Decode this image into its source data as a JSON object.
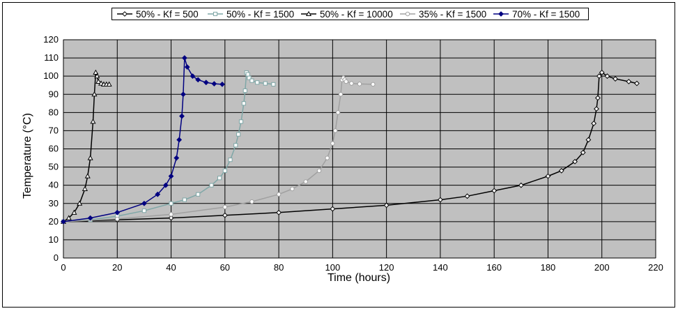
{
  "chart_data": {
    "type": "line",
    "title": "",
    "xlabel": "Time (hours)",
    "ylabel": "Temperature (°C)",
    "xlim": [
      0,
      220
    ],
    "ylim": [
      0,
      120
    ],
    "x_ticks": [
      0,
      20,
      40,
      60,
      80,
      100,
      120,
      140,
      160,
      180,
      200,
      220
    ],
    "y_ticks": [
      0,
      10,
      20,
      30,
      40,
      50,
      60,
      70,
      80,
      90,
      100,
      110,
      120
    ],
    "grid": true,
    "plot_background": "#c0c0c0",
    "legend_position": "top",
    "series": [
      {
        "name": "50% - Kf = 500",
        "color": "#000000",
        "marker": "diamond-open",
        "x": [
          0,
          20,
          40,
          60,
          80,
          100,
          120,
          140,
          150,
          160,
          170,
          180,
          185,
          190,
          193,
          195,
          197,
          198,
          198.5,
          199,
          200,
          202,
          205,
          210,
          213
        ],
        "y": [
          20,
          21,
          22,
          23.5,
          25,
          27,
          29,
          32,
          34,
          37,
          40,
          45,
          48,
          53,
          58,
          65,
          74,
          82,
          88,
          100,
          102,
          100,
          98.5,
          97,
          96
        ]
      },
      {
        "name": "50% - Kf = 1500",
        "color": "#7fa7a7",
        "marker": "square-open",
        "x": [
          0,
          10,
          20,
          30,
          40,
          45,
          50,
          55,
          58,
          60,
          62,
          64,
          65,
          66,
          67,
          67.5,
          68,
          68.5,
          69,
          70,
          72,
          75,
          78
        ],
        "y": [
          20,
          21,
          23,
          26,
          30,
          32,
          35,
          40,
          44,
          48,
          54,
          62,
          68,
          75,
          85,
          92,
          102,
          101,
          99,
          97.5,
          96.5,
          96,
          95.5
        ]
      },
      {
        "name": "50% - Kf = 10000",
        "color": "#000000",
        "marker": "triangle-open",
        "x": [
          0,
          2,
          4,
          6,
          8,
          9,
          10,
          11,
          11.5,
          12,
          12.5,
          13,
          14,
          15,
          16,
          17
        ],
        "y": [
          20,
          22,
          25,
          30,
          38,
          45,
          55,
          75,
          90,
          102,
          100,
          97,
          96,
          95.5,
          95.5,
          95.5
        ]
      },
      {
        "name": "35% - Kf = 1500",
        "color": "#a0a0a0",
        "marker": "circle-open",
        "x": [
          0,
          20,
          40,
          60,
          70,
          80,
          85,
          90,
          95,
          98,
          100,
          101,
          102,
          103,
          103.5,
          104,
          104.5,
          105,
          107,
          110,
          115
        ],
        "y": [
          20,
          21.5,
          24,
          28,
          31,
          35,
          38,
          42,
          48,
          55,
          63,
          70,
          80,
          90,
          98,
          99,
          98,
          97,
          96,
          95.7,
          95.5
        ]
      },
      {
        "name": "70% - Kf = 1500",
        "color": "#000080",
        "marker": "diamond-filled",
        "x": [
          0,
          10,
          20,
          30,
          35,
          38,
          40,
          42,
          43,
          44,
          44.5,
          45,
          46,
          48,
          50,
          53,
          56,
          59
        ],
        "y": [
          20,
          22,
          25,
          30,
          35,
          40,
          45,
          55,
          65,
          78,
          90,
          110,
          105,
          100,
          98,
          96.5,
          95.8,
          95.5
        ]
      }
    ]
  }
}
